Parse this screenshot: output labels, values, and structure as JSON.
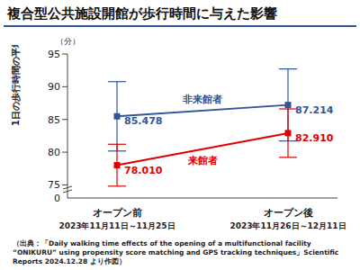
{
  "chart_data": {
    "type": "line",
    "title": "複合型公共施設開館が歩行時間に与えた影響",
    "y_label": "1日の歩行時間の平均",
    "y_unit": "（分）",
    "categories": [
      "オープン前",
      "オープン後"
    ],
    "category_periods": [
      "2023年11月11日～11月25日",
      "2023年11月26日～12月11日"
    ],
    "series": [
      {
        "name": "非来館者",
        "color": "#2f5597",
        "values": [
          85.478,
          87.214
        ],
        "errors": [
          5.3,
          5.5
        ],
        "marker": "square"
      },
      {
        "name": "来館者",
        "color": "#e00000",
        "values": [
          78.01,
          82.91
        ],
        "value_labels": [
          "78.010",
          "82.910"
        ],
        "errors": [
          3.2,
          3.7
        ],
        "marker": "square"
      }
    ],
    "ylim": [
      73,
      95
    ],
    "yticks": [
      75,
      80,
      85,
      90,
      95
    ],
    "y_break": [
      0,
      73
    ],
    "data_labels": true,
    "grid": false,
    "source": "（出典：「Daily walking time effects of the opening of a multifunctional facility “ONIKURU” using propensity score matching and GPS tracking techniques」Scientific Reports 2024.12.28 より作図）"
  }
}
